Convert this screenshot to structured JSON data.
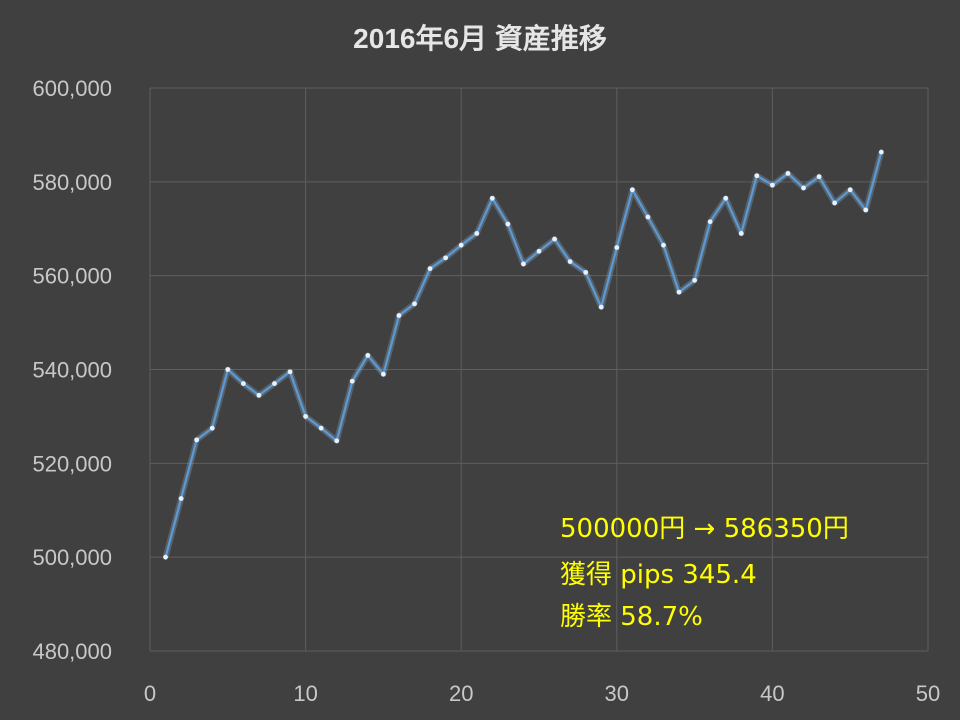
{
  "chart_data": {
    "type": "line",
    "title": "2016年6月 資産推移",
    "xlabel": "",
    "ylabel": "",
    "xlim": [
      0,
      50
    ],
    "ylim": [
      480000,
      600000
    ],
    "x_ticks": [
      0,
      10,
      20,
      30,
      40,
      50
    ],
    "x_tick_labels": [
      "0",
      "10",
      "20",
      "30",
      "40",
      "50"
    ],
    "y_ticks": [
      480000,
      500000,
      520000,
      540000,
      560000,
      580000,
      600000
    ],
    "y_tick_labels": [
      "480,000",
      "500,000",
      "520,000",
      "540,000",
      "560,000",
      "580,000",
      "600,000"
    ],
    "grid": true,
    "legend": "none",
    "series": [
      {
        "color": "#5b9bd5",
        "x": [
          1,
          2,
          3,
          4,
          5,
          6,
          7,
          8,
          9,
          10,
          11,
          12,
          13,
          14,
          15,
          16,
          17,
          18,
          19,
          20,
          21,
          22,
          23,
          24,
          25,
          26,
          27,
          28,
          29,
          30,
          31,
          32,
          33,
          34,
          35,
          36,
          37,
          38,
          39,
          40,
          41,
          42,
          43,
          44,
          45,
          46,
          47
        ],
        "y": [
          500000,
          512500,
          525000,
          527500,
          540000,
          537000,
          534500,
          537000,
          539500,
          530000,
          527500,
          524800,
          537500,
          543000,
          539000,
          551500,
          554000,
          561500,
          563800,
          566500,
          569000,
          576500,
          571000,
          562500,
          565200,
          567800,
          563000,
          560700,
          553300,
          566000,
          578300,
          572500,
          566500,
          556500,
          559000,
          571500,
          576500,
          569000,
          581300,
          579300,
          581800,
          578700,
          581100,
          575500,
          578300,
          574000,
          586350
        ]
      }
    ],
    "annotations": [
      "500000円 → 586350円",
      "獲得 pips  345.4",
      "勝率 58.7%"
    ]
  },
  "colors": {
    "background": "#404040",
    "grid": "#5e5e5e",
    "line": "#5b9bd5",
    "annotation": "#ffff00",
    "tick_label": "#c8c8c8",
    "title": "#e6e6e6"
  }
}
